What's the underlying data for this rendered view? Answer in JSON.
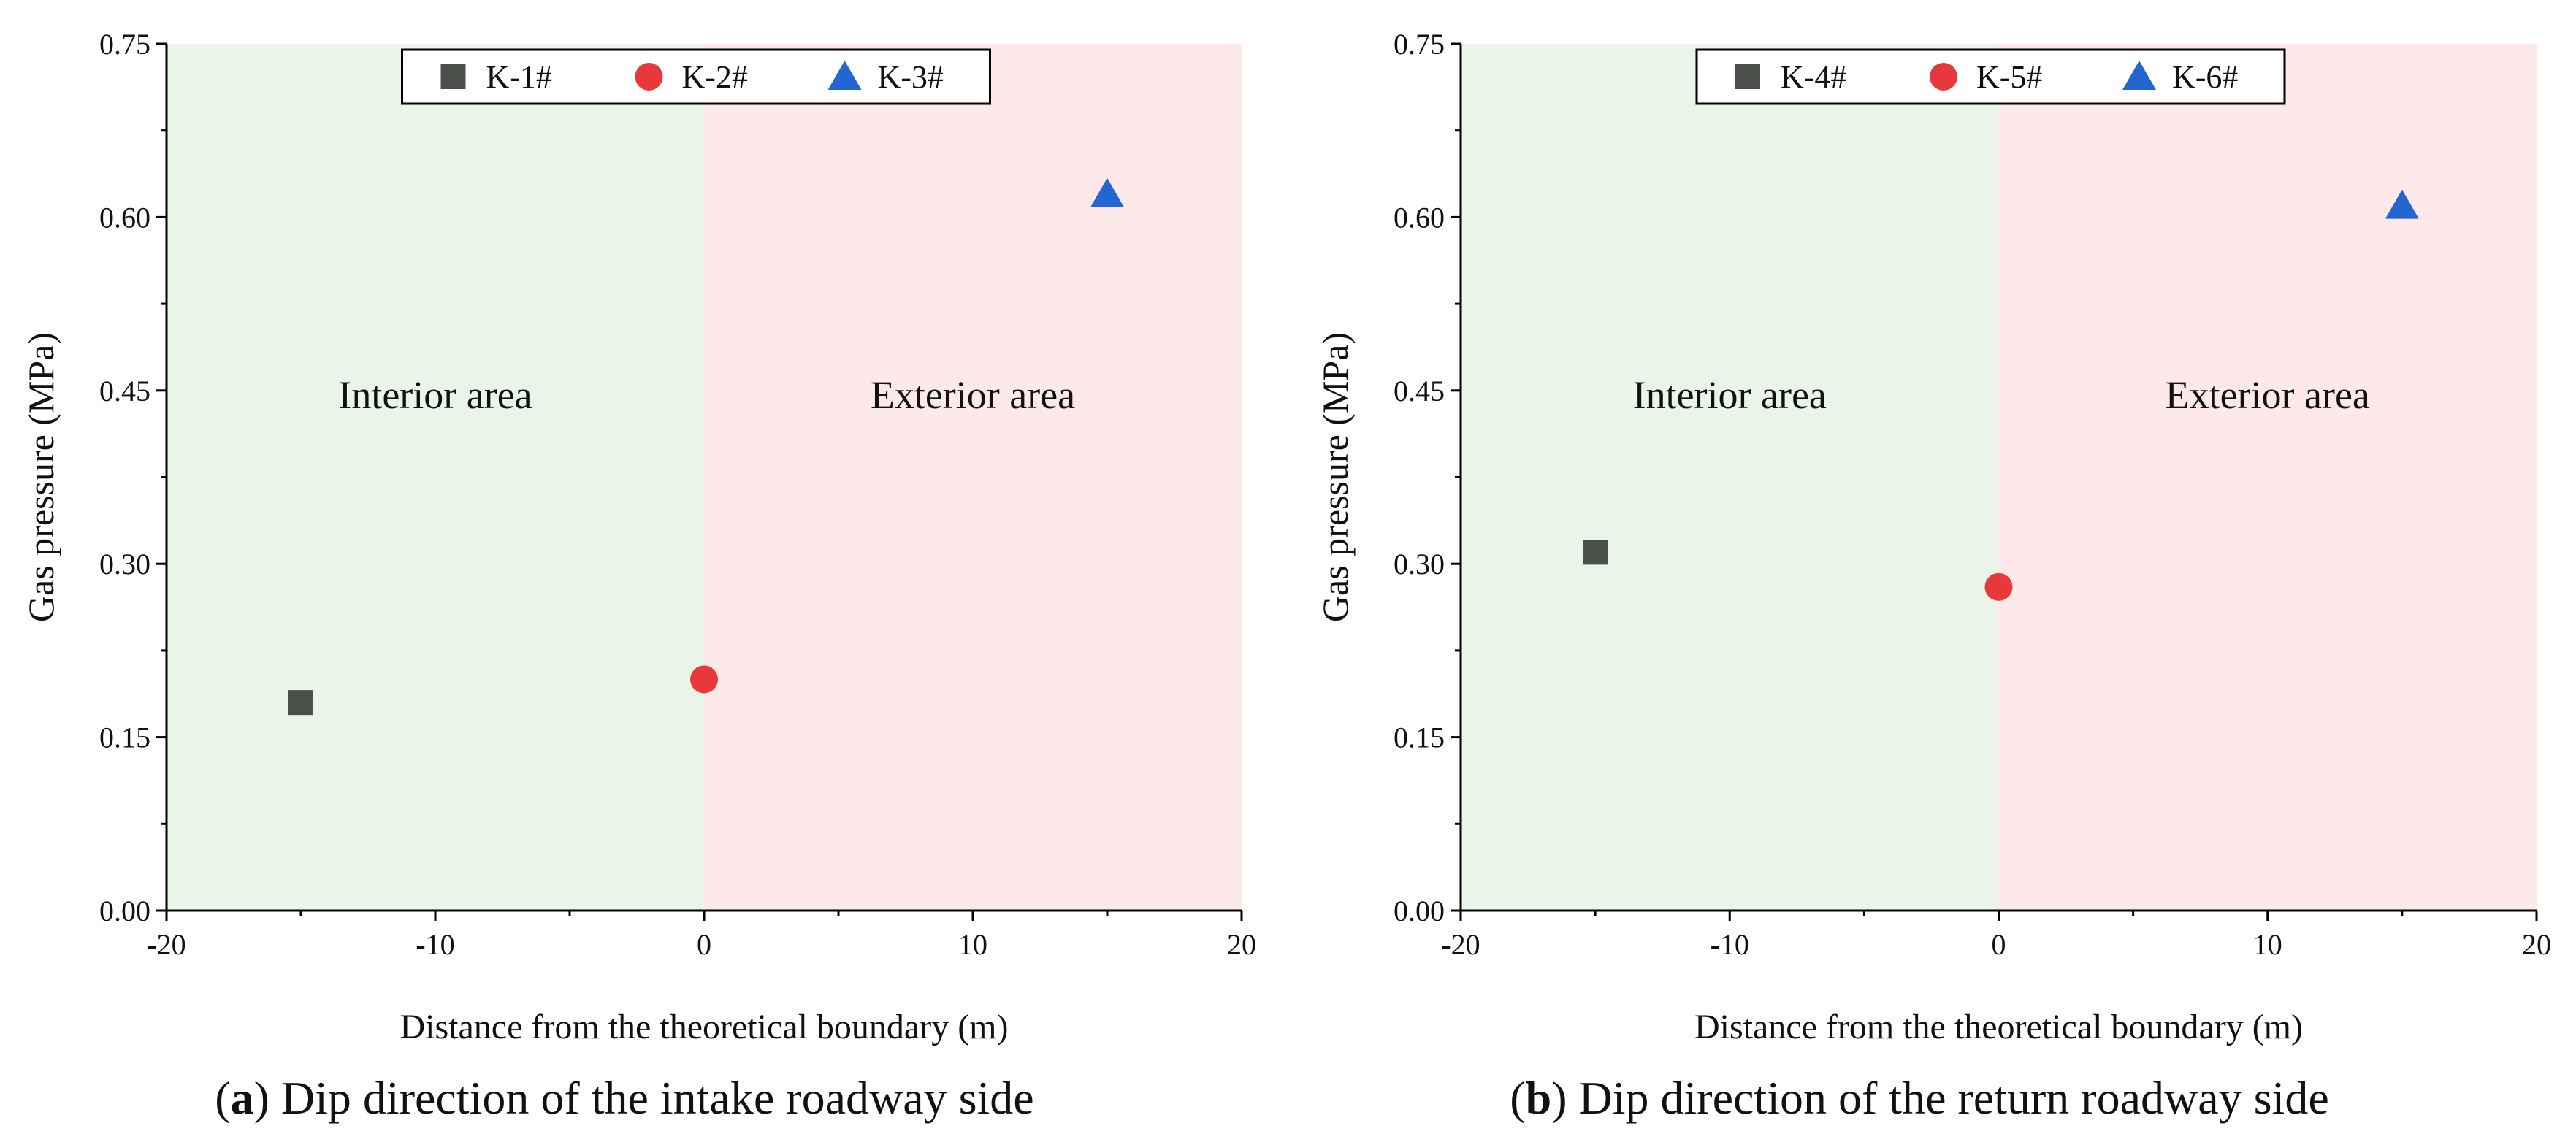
{
  "chart_data": [
    {
      "type": "scatter",
      "panel_letter": "a",
      "caption": "Dip direction of the intake roadway side",
      "xlabel": "Distance from the theoretical boundary (m)",
      "ylabel": "Gas pressure (MPa)",
      "xlim": [
        -20,
        20
      ],
      "ylim": [
        0,
        0.75
      ],
      "x_ticks": [
        -20,
        -10,
        0,
        10,
        20
      ],
      "x_tick_labels": [
        "-20",
        "-10",
        "0",
        "10",
        "20"
      ],
      "y_ticks": [
        0,
        0.15,
        0.3,
        0.45,
        0.6,
        0.75
      ],
      "y_tick_labels": [
        "0.00",
        "0.15",
        "0.30",
        "0.45",
        "0.60",
        "0.75"
      ],
      "regions": [
        {
          "label": "Interior area",
          "x_from": -20,
          "x_to": 0,
          "color": "#eaf5ea"
        },
        {
          "label": "Exterior area",
          "x_from": 0,
          "x_to": 20,
          "color": "#fde9e9"
        }
      ],
      "series": [
        {
          "name": "K-1#",
          "marker": "square",
          "color": "#4a4f4a",
          "x": [
            -15
          ],
          "y": [
            0.18
          ]
        },
        {
          "name": "K-2#",
          "marker": "circle",
          "color": "#e8383c",
          "x": [
            0
          ],
          "y": [
            0.2
          ]
        },
        {
          "name": "K-3#",
          "marker": "triangle",
          "color": "#2366d1",
          "x": [
            15
          ],
          "y": [
            0.62
          ]
        }
      ],
      "legend_position": "top-center"
    },
    {
      "type": "scatter",
      "panel_letter": "b",
      "caption": "Dip direction of the return roadway side",
      "xlabel": "Distance from the theoretical boundary (m)",
      "ylabel": "Gas pressure (MPa)",
      "xlim": [
        -20,
        20
      ],
      "ylim": [
        0,
        0.75
      ],
      "x_ticks": [
        -20,
        -10,
        0,
        10,
        20
      ],
      "x_tick_labels": [
        "-20",
        "-10",
        "0",
        "10",
        "20"
      ],
      "y_ticks": [
        0,
        0.15,
        0.3,
        0.45,
        0.6,
        0.75
      ],
      "y_tick_labels": [
        "0.00",
        "0.15",
        "0.30",
        "0.45",
        "0.60",
        "0.75"
      ],
      "regions": [
        {
          "label": "Interior area",
          "x_from": -20,
          "x_to": 0,
          "color": "#eaf5ea"
        },
        {
          "label": "Exterior area",
          "x_from": 0,
          "x_to": 20,
          "color": "#fde9e9"
        }
      ],
      "series": [
        {
          "name": "K-4#",
          "marker": "square",
          "color": "#4a4f4a",
          "x": [
            -15
          ],
          "y": [
            0.31
          ]
        },
        {
          "name": "K-5#",
          "marker": "circle",
          "color": "#e8383c",
          "x": [
            0
          ],
          "y": [
            0.28
          ]
        },
        {
          "name": "K-6#",
          "marker": "triangle",
          "color": "#2366d1",
          "x": [
            15
          ],
          "y": [
            0.61
          ]
        }
      ],
      "legend_position": "top-center"
    }
  ]
}
